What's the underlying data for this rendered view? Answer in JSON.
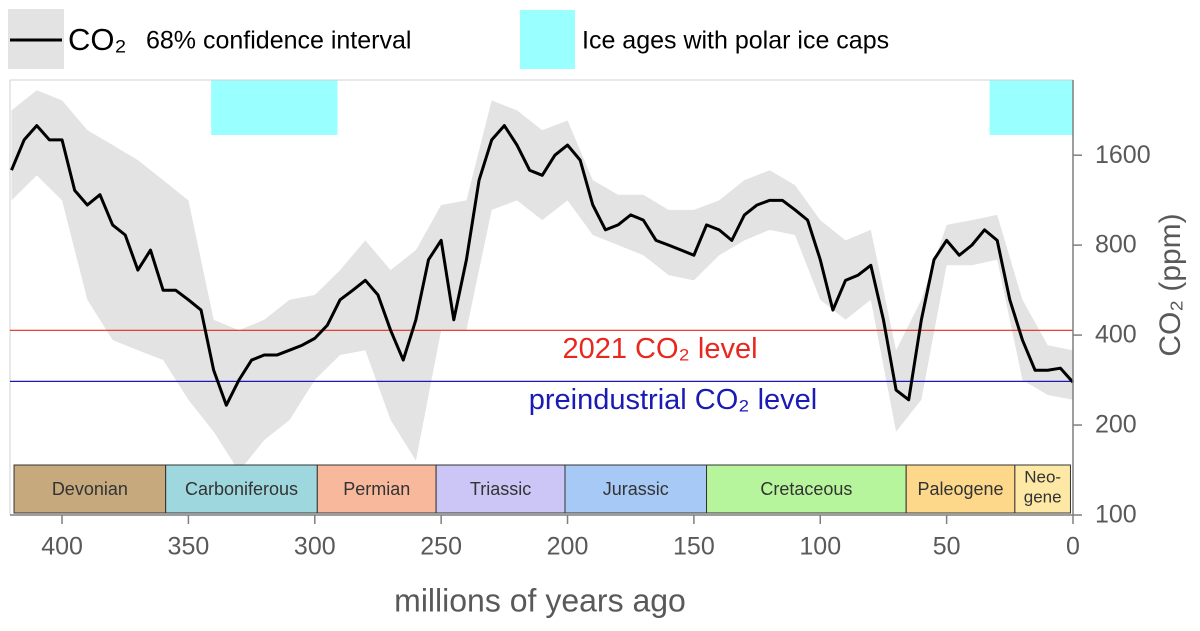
{
  "chart_data": {
    "type": "line",
    "x_label": "millions of years ago",
    "y_label": "CO₂ (ppm)",
    "xlim": [
      420,
      0
    ],
    "ylim": [
      100,
      2900
    ],
    "log_y": true,
    "xticks": [
      400,
      350,
      300,
      250,
      200,
      150,
      100,
      50,
      0
    ],
    "yticks": [
      100,
      200,
      400,
      800,
      1600
    ],
    "series": [
      {
        "name": "CO₂",
        "color": "#000000",
        "x": [
          420,
          415,
          410,
          405,
          400,
          395,
          390,
          385,
          380,
          375,
          370,
          365,
          360,
          355,
          350,
          345,
          340,
          335,
          330,
          325,
          320,
          315,
          310,
          305,
          300,
          295,
          290,
          285,
          280,
          275,
          270,
          265,
          260,
          255,
          250,
          245,
          240,
          235,
          230,
          225,
          220,
          215,
          210,
          205,
          200,
          195,
          190,
          185,
          180,
          175,
          170,
          165,
          160,
          155,
          150,
          145,
          140,
          135,
          130,
          125,
          120,
          115,
          110,
          105,
          100,
          95,
          90,
          85,
          80,
          75,
          70,
          65,
          60,
          55,
          50,
          45,
          40,
          35,
          30,
          25,
          20,
          15,
          10,
          5,
          0
        ],
        "values": [
          1425,
          1800,
          2010,
          1800,
          1800,
          1220,
          1090,
          1180,
          935,
          865,
          660,
          770,
          565,
          565,
          525,
          485,
          305,
          233,
          283,
          330,
          343,
          343,
          356,
          370,
          390,
          432,
          525,
          565,
          610,
          545,
          415,
          330,
          450,
          715,
          830,
          450,
          715,
          1320,
          1800,
          2010,
          1730,
          1425,
          1370,
          1600,
          1730,
          1540,
          1090,
          900,
          935,
          1010,
          970,
          830,
          800,
          770,
          740,
          935,
          900,
          830,
          1010,
          1090,
          1130,
          1130,
          1050,
          970,
          715,
          485,
          610,
          635,
          685,
          450,
          262,
          243,
          450,
          715,
          830,
          740,
          800,
          900,
          830,
          525,
          385,
          305,
          305,
          310,
          278
        ]
      }
    ],
    "band": {
      "name": "68% confidence interval",
      "color": "#e3e3e3",
      "x": [
        420,
        410,
        400,
        390,
        380,
        370,
        360,
        350,
        340,
        330,
        320,
        310,
        300,
        290,
        280,
        270,
        260,
        250,
        240,
        230,
        220,
        210,
        200,
        190,
        180,
        170,
        160,
        150,
        140,
        130,
        120,
        110,
        100,
        90,
        80,
        70,
        60,
        50,
        40,
        30,
        20,
        10,
        0
      ],
      "upper": [
        2260,
        2640,
        2440,
        1940,
        1730,
        1540,
        1320,
        1130,
        450,
        415,
        450,
        525,
        545,
        660,
        830,
        660,
        770,
        1090,
        1130,
        2440,
        2260,
        1940,
        2090,
        1320,
        1180,
        1180,
        1050,
        1050,
        1130,
        1320,
        1425,
        1270,
        970,
        830,
        900,
        356,
        525,
        935,
        970,
        1010,
        525,
        370,
        356
      ],
      "lower": [
        1130,
        1370,
        1130,
        525,
        385,
        356,
        330,
        243,
        190,
        140,
        178,
        208,
        283,
        343,
        356,
        208,
        152,
        415,
        415,
        1050,
        1130,
        970,
        1130,
        865,
        800,
        740,
        635,
        610,
        740,
        830,
        900,
        865,
        525,
        450,
        525,
        190,
        243,
        685,
        685,
        715,
        283,
        252,
        243
      ]
    },
    "ice_ages": {
      "name": "Ice ages with polar ice caps",
      "color": "#99ffff",
      "spans": [
        [
          341,
          291
        ],
        [
          33,
          0
        ]
      ]
    },
    "reference_lines": [
      {
        "label": "2021 CO₂ level",
        "value": 415,
        "color": "#e8281e"
      },
      {
        "label": "preindustrial CO₂ level",
        "value": 280,
        "color": "#1a1ab4"
      }
    ],
    "periods": [
      {
        "name": "Devonian",
        "start": 419,
        "end": 359,
        "color": "#c6a97c"
      },
      {
        "name": "Carboniferous",
        "start": 359,
        "end": 299,
        "color": "#9ed8de"
      },
      {
        "name": "Permian",
        "start": 299,
        "end": 252,
        "color": "#f8b89c"
      },
      {
        "name": "Triassic",
        "start": 252,
        "end": 201,
        "color": "#cbc6f6"
      },
      {
        "name": "Jurassic",
        "start": 201,
        "end": 145,
        "color": "#a7c9f6"
      },
      {
        "name": "Cretaceous",
        "start": 145,
        "end": 66,
        "color": "#b6f59b"
      },
      {
        "name": "Paleogene",
        "start": 66,
        "end": 23,
        "color": "#fdd88b"
      },
      {
        "name": [
          "Neo-",
          "gene"
        ],
        "start": 23,
        "end": 1,
        "color": "#fde8a6"
      }
    ]
  }
}
